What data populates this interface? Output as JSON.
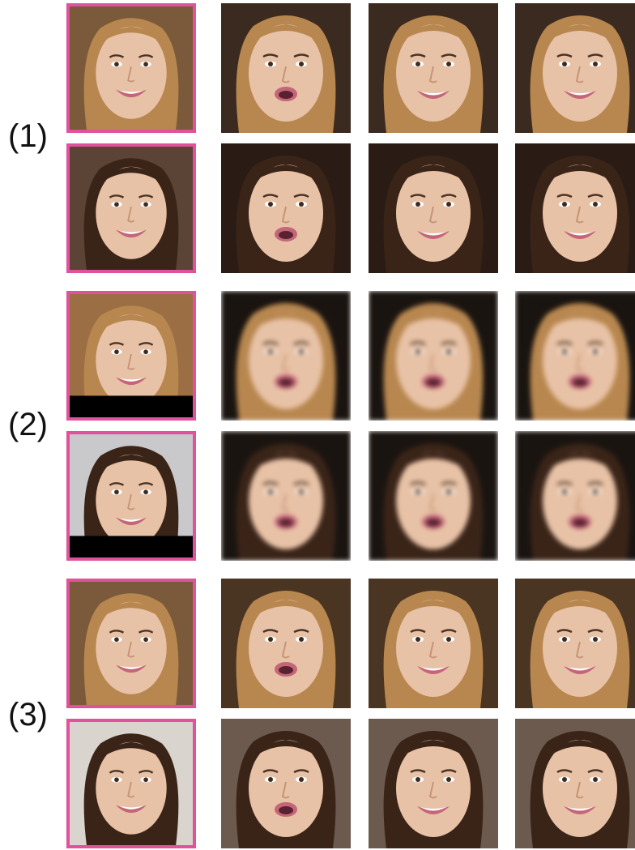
{
  "groups": [
    {
      "label": "(1)"
    },
    {
      "label": "(2)"
    },
    {
      "label": "(3)"
    }
  ],
  "colors": {
    "source_border": "#e0529c",
    "skin_light": "#e8c2a6",
    "skin_shadow": "#c79377",
    "hair_blonde": "#b8874f",
    "hair_dark": "#3a2418",
    "lip": "#c4667a",
    "teeth": "#ffffff"
  },
  "tiles": [
    {
      "id": "g1-r1-c0",
      "hair": "blonde",
      "mouth": "smile",
      "bg": "#7a5a3a",
      "src": true
    },
    {
      "id": "g1-r1-c1",
      "hair": "blonde",
      "mouth": "open",
      "bg": "#3b2a20",
      "src": false
    },
    {
      "id": "g1-r1-c2",
      "hair": "blonde",
      "mouth": "smile",
      "bg": "#3b2a20",
      "src": false
    },
    {
      "id": "g1-r1-c3",
      "hair": "blonde",
      "mouth": "smile",
      "bg": "#3b2a20",
      "src": false
    },
    {
      "id": "g1-r2-c0",
      "hair": "dark",
      "mouth": "smile",
      "bg": "#5b4436",
      "src": true
    },
    {
      "id": "g1-r2-c1",
      "hair": "dark",
      "mouth": "open",
      "bg": "#2a1c15",
      "src": false
    },
    {
      "id": "g1-r2-c2",
      "hair": "dark",
      "mouth": "smile",
      "bg": "#2a1c15",
      "src": false
    },
    {
      "id": "g1-r2-c3",
      "hair": "dark",
      "mouth": "smile",
      "bg": "#2a1c15",
      "src": false
    },
    {
      "id": "g2-r1-c0",
      "hair": "blonde",
      "mouth": "smile",
      "bg": "#9c6e43",
      "src": true,
      "letterbox": true
    },
    {
      "id": "g2-r1-c1",
      "hair": "blonde",
      "mouth": "open",
      "bg": "#1a1410",
      "src": false,
      "blur": true
    },
    {
      "id": "g2-r1-c2",
      "hair": "blonde",
      "mouth": "open",
      "bg": "#1a1410",
      "src": false,
      "blur": true
    },
    {
      "id": "g2-r1-c3",
      "hair": "blonde",
      "mouth": "open",
      "bg": "#1a1410",
      "src": false,
      "blur": true
    },
    {
      "id": "g2-r2-c0",
      "hair": "dark",
      "mouth": "smile",
      "bg": "#c9c9cc",
      "src": true,
      "letterbox": true
    },
    {
      "id": "g2-r2-c1",
      "hair": "dark",
      "mouth": "open",
      "bg": "#1a1410",
      "src": false,
      "blur": true
    },
    {
      "id": "g2-r2-c2",
      "hair": "dark",
      "mouth": "open",
      "bg": "#1a1410",
      "src": false,
      "blur": true
    },
    {
      "id": "g2-r2-c3",
      "hair": "dark",
      "mouth": "open",
      "bg": "#1a1410",
      "src": false,
      "blur": true
    },
    {
      "id": "g3-r1-c0",
      "hair": "blonde",
      "mouth": "smile",
      "bg": "#7a5a3a",
      "src": true
    },
    {
      "id": "g3-r1-c1",
      "hair": "blonde",
      "mouth": "open",
      "bg": "#4a3422",
      "src": false
    },
    {
      "id": "g3-r1-c2",
      "hair": "blonde",
      "mouth": "smile",
      "bg": "#4a3422",
      "src": false
    },
    {
      "id": "g3-r1-c3",
      "hair": "blonde",
      "mouth": "smile",
      "bg": "#4a3422",
      "src": false
    },
    {
      "id": "g3-r2-c0",
      "hair": "dark",
      "mouth": "smile",
      "bg": "#d9d4ce",
      "src": true
    },
    {
      "id": "g3-r2-c1",
      "hair": "dark",
      "mouth": "open",
      "bg": "#6b5a4d",
      "src": false
    },
    {
      "id": "g3-r2-c2",
      "hair": "dark",
      "mouth": "smile",
      "bg": "#6b5a4d",
      "src": false
    },
    {
      "id": "g3-r2-c3",
      "hair": "dark",
      "mouth": "smile",
      "bg": "#6b5a4d",
      "src": false
    }
  ]
}
